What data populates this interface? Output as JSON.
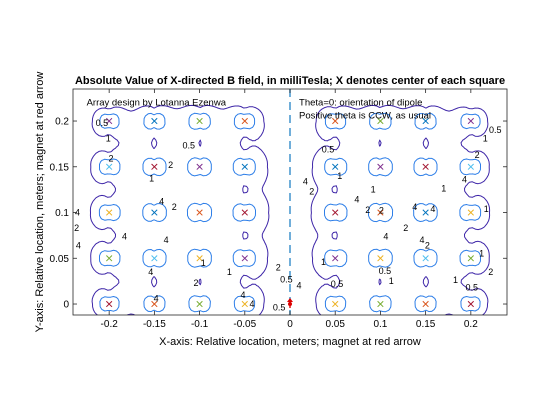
{
  "chart_data": {
    "type": "contour",
    "title": "Absolute Value of X-directed B field, in milliTesla;  X denotes center of each square",
    "xlabel": "X-axis: Relative location, meters;  magnet at red arrow",
    "ylabel": "Y-axis: Relative location, meters;  magnet at red arrow",
    "xlim": [
      -0.24,
      0.24
    ],
    "ylim": [
      -0.012,
      0.235
    ],
    "xticks": [
      -0.2,
      -0.15,
      -0.1,
      -0.05,
      0,
      0.05,
      0.1,
      0.15,
      0.2
    ],
    "xtick_labels": [
      "-0.2",
      "-0.15",
      "-0.1",
      "-0.05",
      "0",
      "0.05",
      "0.1",
      "0.15",
      "0.2"
    ],
    "yticks": [
      0,
      0.05,
      0.1,
      0.15,
      0.2
    ],
    "ytick_labels": [
      "0",
      "0.05",
      "0.1",
      "0.15",
      "0.2"
    ],
    "grid": false,
    "annotations": [
      {
        "text": "Array design by Lotanna Ezenwa",
        "x": -0.225,
        "y": 0.217
      },
      {
        "text": "Theta=0: orientation of dipole",
        "x": 0.01,
        "y": 0.217
      },
      {
        "text": "Positive theta is CCW, as usual",
        "x": 0.01,
        "y": 0.2025
      }
    ],
    "contour_levels": [
      0.5,
      1,
      2,
      4
    ],
    "level_colors": {
      "0.5": "#3e26a8",
      "1": "#2d7ee8",
      "2": "#1cb8b2",
      "4": "#eae82a"
    },
    "dipole_line": {
      "x": 0,
      "color": "#4d9ad0",
      "style": "dashed"
    },
    "magnet_marker": {
      "x": 0,
      "y": 0,
      "color": "#dd0000"
    },
    "contour_labels": [
      {
        "t": "0.5",
        "x": -0.208,
        "y": 0.198
      },
      {
        "t": "1",
        "x": -0.201,
        "y": 0.181
      },
      {
        "t": "2",
        "x": -0.198,
        "y": 0.159
      },
      {
        "t": "2",
        "x": -0.132,
        "y": 0.152
      },
      {
        "t": "0.5",
        "x": -0.112,
        "y": 0.173
      },
      {
        "t": "1",
        "x": -0.153,
        "y": 0.137
      },
      {
        "t": "4",
        "x": -0.142,
        "y": 0.112
      },
      {
        "t": "2",
        "x": -0.128,
        "y": 0.106
      },
      {
        "t": "4",
        "x": -0.235,
        "y": 0.1
      },
      {
        "t": "2",
        "x": -0.236,
        "y": 0.083
      },
      {
        "t": "4",
        "x": -0.234,
        "y": 0.064
      },
      {
        "t": "4",
        "x": -0.183,
        "y": 0.074
      },
      {
        "t": "4",
        "x": -0.137,
        "y": 0.07
      },
      {
        "t": "4",
        "x": -0.154,
        "y": 0.035
      },
      {
        "t": "4",
        "x": -0.148,
        "y": 0.006
      },
      {
        "t": "2",
        "x": -0.104,
        "y": 0.023
      },
      {
        "t": "1",
        "x": -0.096,
        "y": 0.045
      },
      {
        "t": "1",
        "x": -0.067,
        "y": 0.035
      },
      {
        "t": "4",
        "x": -0.042,
        "y": 0.0
      },
      {
        "t": "4",
        "x": -0.052,
        "y": 0.01
      },
      {
        "t": "0.5",
        "x": -0.012,
        "y": -0.004
      },
      {
        "t": "0.5",
        "x": -0.004,
        "y": 0.027
      },
      {
        "t": "2",
        "x": -0.013,
        "y": 0.04
      },
      {
        "t": "4",
        "x": 0.01,
        "y": 0.02
      },
      {
        "t": "1",
        "x": 0.037,
        "y": 0.046
      },
      {
        "t": "4",
        "x": 0.017,
        "y": 0.134
      },
      {
        "t": "2",
        "x": 0.024,
        "y": 0.123
      },
      {
        "t": "0.5",
        "x": 0.042,
        "y": 0.169
      },
      {
        "t": "1",
        "x": 0.055,
        "y": 0.14
      },
      {
        "t": "4",
        "x": 0.074,
        "y": 0.114
      },
      {
        "t": "2",
        "x": 0.086,
        "y": 0.103
      },
      {
        "t": "1",
        "x": 0.092,
        "y": 0.125
      },
      {
        "t": "2",
        "x": 0.101,
        "y": 0.102
      },
      {
        "t": "4",
        "x": 0.106,
        "y": 0.074
      },
      {
        "t": "2",
        "x": 0.128,
        "y": 0.083
      },
      {
        "t": "4",
        "x": 0.146,
        "y": 0.07
      },
      {
        "t": "2",
        "x": 0.152,
        "y": 0.064
      },
      {
        "t": "0.5",
        "x": 0.052,
        "y": 0.022
      },
      {
        "t": "1",
        "x": 0.112,
        "y": 0.025
      },
      {
        "t": "0.5",
        "x": 0.105,
        "y": 0.036
      },
      {
        "t": "1",
        "x": 0.183,
        "y": 0.026
      },
      {
        "t": "0.5",
        "x": 0.201,
        "y": 0.018
      },
      {
        "t": "0.5",
        "x": 0.227,
        "y": 0.19
      },
      {
        "t": "1",
        "x": 0.216,
        "y": 0.181
      },
      {
        "t": "2",
        "x": 0.207,
        "y": 0.163
      },
      {
        "t": "4",
        "x": 0.193,
        "y": 0.136
      },
      {
        "t": "1",
        "x": 0.217,
        "y": 0.104
      },
      {
        "t": "4",
        "x": 0.158,
        "y": 0.104
      },
      {
        "t": "1",
        "x": 0.17,
        "y": 0.126
      },
      {
        "t": "4",
        "x": 0.138,
        "y": 0.106
      },
      {
        "t": "1",
        "x": 0.212,
        "y": 0.055
      },
      {
        "t": "2",
        "x": 0.222,
        "y": 0.035
      }
    ],
    "series": [
      {
        "name": "centers",
        "points": [
          {
            "x": -0.2,
            "y": 0.2,
            "c": "#7e2f8e"
          },
          {
            "x": -0.15,
            "y": 0.2,
            "c": "#0072bd"
          },
          {
            "x": -0.1,
            "y": 0.2,
            "c": "#77ac30"
          },
          {
            "x": -0.05,
            "y": 0.2,
            "c": "#d95319"
          },
          {
            "x": 0.05,
            "y": 0.2,
            "c": "#d95319"
          },
          {
            "x": 0.1,
            "y": 0.2,
            "c": "#77ac30"
          },
          {
            "x": 0.15,
            "y": 0.2,
            "c": "#0072bd"
          },
          {
            "x": 0.2,
            "y": 0.2,
            "c": "#7e2f8e"
          },
          {
            "x": -0.2,
            "y": 0.15,
            "c": "#4dbeee"
          },
          {
            "x": -0.15,
            "y": 0.15,
            "c": "#a2142f"
          },
          {
            "x": -0.1,
            "y": 0.15,
            "c": "#7e2f8e"
          },
          {
            "x": -0.05,
            "y": 0.15,
            "c": "#0072bd"
          },
          {
            "x": 0.05,
            "y": 0.15,
            "c": "#0072bd"
          },
          {
            "x": 0.1,
            "y": 0.15,
            "c": "#7e2f8e"
          },
          {
            "x": 0.15,
            "y": 0.15,
            "c": "#a2142f"
          },
          {
            "x": 0.2,
            "y": 0.15,
            "c": "#4dbeee"
          },
          {
            "x": -0.2,
            "y": 0.1,
            "c": "#edb120"
          },
          {
            "x": -0.15,
            "y": 0.1,
            "c": "#0072bd"
          },
          {
            "x": -0.1,
            "y": 0.1,
            "c": "#d95319"
          },
          {
            "x": -0.05,
            "y": 0.1,
            "c": "#a2142f"
          },
          {
            "x": 0.05,
            "y": 0.1,
            "c": "#a2142f"
          },
          {
            "x": 0.1,
            "y": 0.1,
            "c": "#d95319"
          },
          {
            "x": 0.15,
            "y": 0.1,
            "c": "#0072bd"
          },
          {
            "x": 0.2,
            "y": 0.1,
            "c": "#edb120"
          },
          {
            "x": -0.2,
            "y": 0.05,
            "c": "#77ac30"
          },
          {
            "x": -0.15,
            "y": 0.05,
            "c": "#4dbeee"
          },
          {
            "x": -0.1,
            "y": 0.05,
            "c": "#edb120"
          },
          {
            "x": -0.05,
            "y": 0.05,
            "c": "#7e2f8e"
          },
          {
            "x": 0.05,
            "y": 0.05,
            "c": "#7e2f8e"
          },
          {
            "x": 0.1,
            "y": 0.05,
            "c": "#edb120"
          },
          {
            "x": 0.15,
            "y": 0.05,
            "c": "#4dbeee"
          },
          {
            "x": 0.2,
            "y": 0.05,
            "c": "#77ac30"
          },
          {
            "x": -0.2,
            "y": 0.0,
            "c": "#a2142f"
          },
          {
            "x": -0.15,
            "y": 0.0,
            "c": "#d95319"
          },
          {
            "x": -0.1,
            "y": 0.0,
            "c": "#77ac30"
          },
          {
            "x": -0.05,
            "y": 0.0,
            "c": "#edb120"
          },
          {
            "x": 0.05,
            "y": 0.0,
            "c": "#edb120"
          },
          {
            "x": 0.1,
            "y": 0.0,
            "c": "#77ac30"
          },
          {
            "x": 0.15,
            "y": 0.0,
            "c": "#d95319"
          },
          {
            "x": 0.2,
            "y": 0.0,
            "c": "#a2142f"
          }
        ]
      }
    ]
  }
}
